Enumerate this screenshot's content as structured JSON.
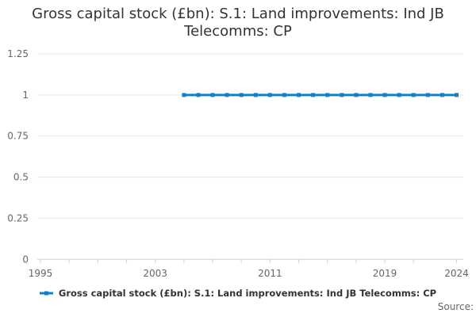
{
  "title": {
    "lines": [
      "Gross capital stock (£bn): S.1: Land improvements: Ind JB",
      "Telecomms: CP"
    ],
    "full": "Gross capital stock (£bn): S.1: Land improvements: Ind JB Telecomms: CP"
  },
  "legend": {
    "label": "Gross capital stock (£bn): S.1: Land improvements: Ind JB Telecomms: CP"
  },
  "source_label": "Source:",
  "colors": {
    "series": "#1380c4",
    "grid": "#e6e6e6",
    "axis": "#ccd6eb",
    "tick_label": "#666666",
    "title_text": "#333333"
  },
  "chart_data": {
    "type": "line",
    "title": "Gross capital stock (£bn): S.1: Land improvements: Ind JB Telecomms: CP",
    "series": [
      {
        "name": "Gross capital stock (£bn): S.1: Land improvements: Ind JB Telecomms: CP",
        "x": [
          2005,
          2006,
          2007,
          2008,
          2009,
          2010,
          2011,
          2012,
          2013,
          2014,
          2015,
          2016,
          2017,
          2018,
          2019,
          2020,
          2021,
          2022,
          2023,
          2024
        ],
        "values": [
          1,
          1,
          1,
          1,
          1,
          1,
          1,
          1,
          1,
          1,
          1,
          1,
          1,
          1,
          1,
          1,
          1,
          1,
          1,
          1
        ]
      }
    ],
    "xlabel": "",
    "ylabel": "",
    "xlim": [
      1995,
      2024
    ],
    "ylim": [
      0,
      1.25
    ],
    "yticks": [
      0,
      0.25,
      0.5,
      0.75,
      1,
      1.25
    ],
    "ytick_labels": [
      "0",
      "0.25",
      "0.5",
      "0.75",
      "1",
      "1.25"
    ],
    "xticks": [
      1995,
      1997,
      1999,
      2001,
      2003,
      2005,
      2007,
      2009,
      2011,
      2013,
      2015,
      2017,
      2019,
      2021,
      2024
    ],
    "xtick_labels": {
      "1995": "1995",
      "2003": "2003",
      "2011": "2011",
      "2019": "2019",
      "2024": "2024"
    },
    "grid": true,
    "marker": "square",
    "legend_position": "bottom"
  }
}
